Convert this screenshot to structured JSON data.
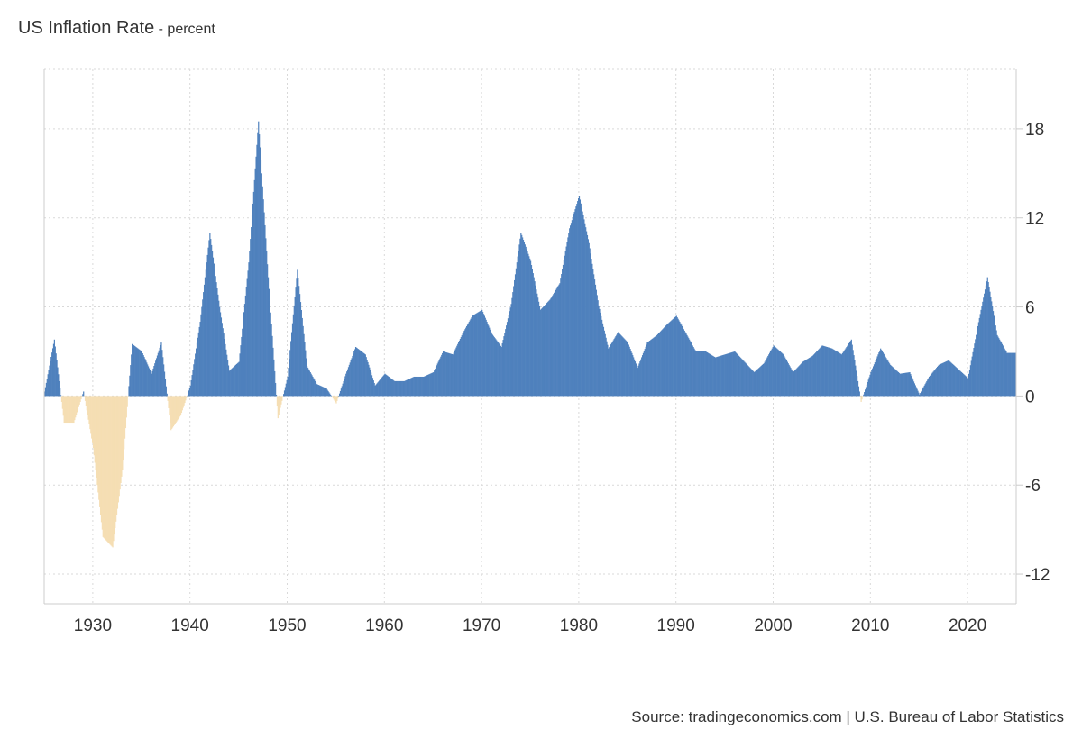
{
  "chart_data": {
    "type": "bar",
    "title": "US Inflation Rate",
    "subtitle": "- percent",
    "source": "Source: tradingeconomics.com | U.S. Bureau of Labor Statistics",
    "xlabel": "",
    "ylabel": "",
    "xlim": [
      1925,
      2025
    ],
    "ylim": [
      -14,
      22
    ],
    "y_ticks": [
      18,
      12,
      6,
      0,
      -6,
      -12
    ],
    "x_ticks": [
      1930,
      1940,
      1950,
      1960,
      1970,
      1980,
      1990,
      2000,
      2010,
      2020
    ],
    "grid": true,
    "y_axis_side": "right",
    "colors": {
      "positive": "#4f81bd",
      "negative": "#f5deb3"
    },
    "series": [
      {
        "values_by_year_start": 1925,
        "note_units": "percent, year-over-year, approximate monthly path summarized per year",
        "x": [
          1925,
          1926,
          1927,
          1928,
          1929,
          1930,
          1931,
          1932,
          1933,
          1934,
          1935,
          1936,
          1937,
          1938,
          1939,
          1940,
          1941,
          1942,
          1943,
          1944,
          1945,
          1946,
          1947,
          1948,
          1949,
          1950,
          1951,
          1952,
          1953,
          1954,
          1955,
          1956,
          1957,
          1958,
          1959,
          1960,
          1961,
          1962,
          1963,
          1964,
          1965,
          1966,
          1967,
          1968,
          1969,
          1970,
          1971,
          1972,
          1973,
          1974,
          1975,
          1976,
          1977,
          1978,
          1979,
          1980,
          1981,
          1982,
          1983,
          1984,
          1985,
          1986,
          1987,
          1988,
          1989,
          1990,
          1991,
          1992,
          1993,
          1994,
          1995,
          1996,
          1997,
          1998,
          1999,
          2000,
          2001,
          2002,
          2003,
          2004,
          2005,
          2006,
          2007,
          2008,
          2009,
          2010,
          2011,
          2012,
          2013,
          2014,
          2015,
          2016,
          2017,
          2018,
          2019,
          2020,
          2021,
          2022,
          2023,
          2024
        ],
        "y": [
          0.3,
          3.8,
          -1.8,
          -1.8,
          0.3,
          -3.5,
          -9.5,
          -10.2,
          -5.0,
          3.5,
          3.0,
          1.5,
          3.6,
          -2.3,
          -1.3,
          0.7,
          5.0,
          11.0,
          6.0,
          1.7,
          2.3,
          9.0,
          18.5,
          8.0,
          -1.5,
          1.3,
          8.5,
          2.0,
          0.8,
          0.5,
          -0.5,
          1.5,
          3.3,
          2.8,
          0.7,
          1.5,
          1.0,
          1.0,
          1.3,
          1.3,
          1.6,
          3.0,
          2.8,
          4.2,
          5.4,
          5.8,
          4.2,
          3.3,
          6.2,
          11.0,
          9.1,
          5.8,
          6.5,
          7.6,
          11.3,
          13.5,
          10.3,
          6.1,
          3.2,
          4.3,
          3.6,
          1.9,
          3.6,
          4.1,
          4.8,
          5.4,
          4.2,
          3.0,
          3.0,
          2.6,
          2.8,
          3.0,
          2.3,
          1.6,
          2.2,
          3.4,
          2.8,
          1.6,
          2.3,
          2.7,
          3.4,
          3.2,
          2.8,
          3.8,
          -0.4,
          1.6,
          3.2,
          2.1,
          1.5,
          1.6,
          0.1,
          1.3,
          2.1,
          2.4,
          1.8,
          1.2,
          4.7,
          8.0,
          4.1,
          2.9
        ]
      }
    ]
  }
}
